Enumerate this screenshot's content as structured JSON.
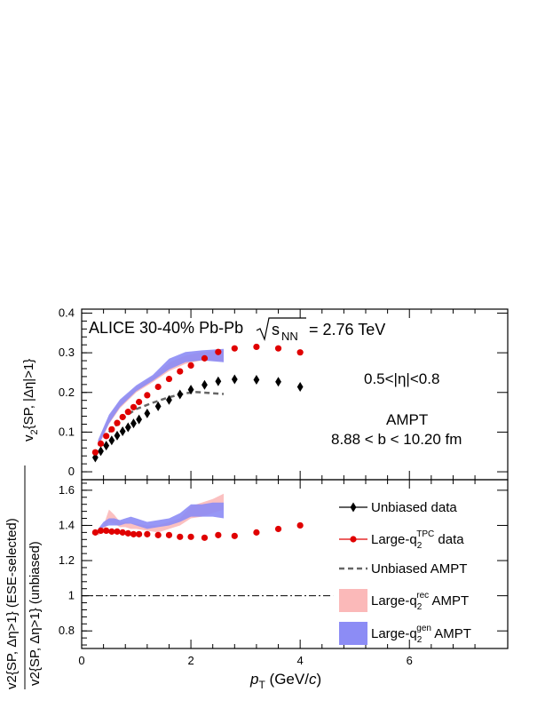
{
  "chart_data": [
    {
      "type": "scatter",
      "panel": "top",
      "title": "ALICE 30-40% Pb-Pb",
      "energy_label": {
        "root": "s",
        "sub": "NN",
        "value": "= 2.76 TeV"
      },
      "annotations": [
        "0.5<|η|<0.8",
        "AMPT",
        "8.88 < b < 10.20 fm"
      ],
      "ylabel": {
        "base": "v",
        "sub": "2",
        "rest": "{SP, |Δη|>1}"
      },
      "xlim": [
        0,
        7.8
      ],
      "ylim": [
        -0.02,
        0.41
      ],
      "yticks": [
        "0",
        "0.1",
        "0.2",
        "0.3",
        "0.4"
      ],
      "series": [
        {
          "name": "Unbiased data",
          "color": "#000000",
          "marker": "diamond",
          "x": [
            0.25,
            0.35,
            0.45,
            0.55,
            0.65,
            0.75,
            0.85,
            0.95,
            1.05,
            1.2,
            1.4,
            1.6,
            1.8,
            2.0,
            2.25,
            2.5,
            2.8,
            3.2,
            3.6,
            4.0
          ],
          "y": [
            0.036,
            0.052,
            0.066,
            0.079,
            0.091,
            0.102,
            0.112,
            0.122,
            0.132,
            0.147,
            0.165,
            0.181,
            0.195,
            0.207,
            0.219,
            0.228,
            0.233,
            0.232,
            0.227,
            0.214
          ]
        },
        {
          "name": "Large-q2 data",
          "color": "#e00000",
          "marker": "circle",
          "x": [
            0.25,
            0.35,
            0.45,
            0.55,
            0.65,
            0.75,
            0.85,
            0.95,
            1.05,
            1.2,
            1.4,
            1.6,
            1.8,
            2.0,
            2.25,
            2.5,
            2.8,
            3.2,
            3.6,
            4.0
          ],
          "y": [
            0.049,
            0.071,
            0.09,
            0.107,
            0.123,
            0.138,
            0.151,
            0.163,
            0.176,
            0.193,
            0.214,
            0.234,
            0.253,
            0.268,
            0.286,
            0.302,
            0.311,
            0.315,
            0.311,
            0.301
          ]
        },
        {
          "name": "Unbiased AMPT",
          "color": "#666666",
          "style": "dashed",
          "x": [
            0.5,
            0.8,
            1.0,
            1.3,
            1.6,
            1.9,
            2.1,
            2.3,
            2.6
          ],
          "y": [
            0.1,
            0.14,
            0.158,
            0.174,
            0.188,
            0.198,
            0.201,
            0.199,
            0.196
          ]
        },
        {
          "name": "Large-q2rec AMPT",
          "color": "#fbb9b9",
          "style": "band",
          "x": [
            0.3,
            0.5,
            0.7,
            1.0,
            1.3,
            1.6,
            1.9,
            2.2,
            2.6
          ],
          "low": [
            0.062,
            0.12,
            0.16,
            0.2,
            0.226,
            0.254,
            0.272,
            0.281,
            0.278
          ],
          "high": [
            0.078,
            0.14,
            0.178,
            0.214,
            0.24,
            0.275,
            0.293,
            0.302,
            0.306
          ]
        },
        {
          "name": "Large-q2gen AMPT",
          "color": "#8c8cf5",
          "style": "band",
          "x": [
            0.3,
            0.5,
            0.7,
            1.0,
            1.3,
            1.6,
            1.9,
            2.2,
            2.6
          ],
          "low": [
            0.064,
            0.122,
            0.163,
            0.203,
            0.229,
            0.258,
            0.276,
            0.281,
            0.276
          ],
          "high": [
            0.08,
            0.144,
            0.182,
            0.218,
            0.244,
            0.285,
            0.302,
            0.306,
            0.31
          ]
        }
      ]
    },
    {
      "type": "scatter",
      "panel": "bottom",
      "ylabel_num": "v2{SP, Δη>1} (ESE-selected)",
      "ylabel_den": "v2{SP, Δη>1} (unbiased)",
      "xlabel": {
        "base": "p",
        "sub": "T",
        "rest": " (GeV/",
        "unit_it": "c",
        "close": ")"
      },
      "xlim": [
        0,
        7.8
      ],
      "ylim": [
        0.7,
        1.66
      ],
      "xticks": [
        "0",
        "2",
        "4",
        "6"
      ],
      "yticks": [
        "0.8",
        "1",
        "1.2",
        "1.4",
        "1.6"
      ],
      "reference_line": 1.0,
      "series": [
        {
          "name": "Large-q2 data",
          "color": "#e00000",
          "marker": "circle",
          "x": [
            0.25,
            0.35,
            0.45,
            0.55,
            0.65,
            0.75,
            0.85,
            0.95,
            1.05,
            1.2,
            1.4,
            1.6,
            1.8,
            2.0,
            2.25,
            2.5,
            2.8,
            3.2,
            3.6,
            4.0
          ],
          "y": [
            1.36,
            1.37,
            1.37,
            1.365,
            1.365,
            1.36,
            1.355,
            1.35,
            1.35,
            1.35,
            1.345,
            1.345,
            1.335,
            1.335,
            1.33,
            1.345,
            1.34,
            1.36,
            1.38,
            1.4
          ]
        },
        {
          "name": "Large-q2rec AMPT",
          "color": "#fbb9b9",
          "style": "band",
          "x": [
            0.3,
            0.4,
            0.5,
            0.6,
            0.7,
            0.8,
            0.9,
            1.0,
            1.2,
            1.4,
            1.6,
            1.8,
            2.0,
            2.2,
            2.4,
            2.6
          ],
          "low": [
            1.34,
            1.37,
            1.42,
            1.41,
            1.39,
            1.39,
            1.38,
            1.38,
            1.37,
            1.36,
            1.38,
            1.4,
            1.44,
            1.45,
            1.47,
            1.49
          ],
          "high": [
            1.37,
            1.4,
            1.49,
            1.46,
            1.42,
            1.42,
            1.41,
            1.41,
            1.4,
            1.4,
            1.42,
            1.44,
            1.51,
            1.53,
            1.55,
            1.58
          ]
        },
        {
          "name": "Large-q2gen AMPT",
          "color": "#8c8cf5",
          "style": "band",
          "x": [
            0.3,
            0.4,
            0.5,
            0.6,
            0.7,
            0.8,
            0.9,
            1.0,
            1.2,
            1.4,
            1.6,
            1.8,
            2.0,
            2.2,
            2.4,
            2.6
          ],
          "low": [
            1.36,
            1.39,
            1.4,
            1.4,
            1.4,
            1.41,
            1.41,
            1.4,
            1.38,
            1.39,
            1.4,
            1.42,
            1.45,
            1.45,
            1.45,
            1.44
          ],
          "high": [
            1.38,
            1.42,
            1.44,
            1.44,
            1.43,
            1.44,
            1.45,
            1.44,
            1.42,
            1.43,
            1.44,
            1.47,
            1.52,
            1.52,
            1.53,
            1.53
          ]
        }
      ]
    }
  ],
  "legend": [
    {
      "text": "Unbiased data",
      "kind": "diamond-line",
      "color": "#000000"
    },
    {
      "base": "Large-q",
      "sub": "2",
      "sup": "TPC",
      "after": " data",
      "kind": "circle-line",
      "color": "#e00000"
    },
    {
      "text": "Unbiased AMPT",
      "kind": "dashed",
      "color": "#666666"
    },
    {
      "base": "Large-q",
      "sub": "2",
      "sup": "rec",
      "after": " AMPT",
      "kind": "box",
      "color": "#fbb9b9"
    },
    {
      "base": "Large-q",
      "sub": "2",
      "sup": "gen",
      "after": " AMPT",
      "kind": "box",
      "color": "#8c8cf5"
    }
  ]
}
